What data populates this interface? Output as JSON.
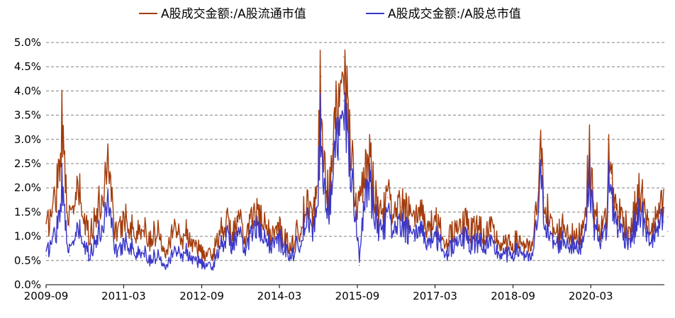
{
  "chart_data": {
    "type": "line",
    "title": "",
    "xlabel": "",
    "ylabel": "",
    "x_range": [
      "2009-09",
      "2021-08"
    ],
    "x_ticks": [
      "2009-09",
      "2011-03",
      "2012-09",
      "2014-03",
      "2015-09",
      "2017-03",
      "2018-09",
      "2020-03"
    ],
    "y_ticks": [
      "0.0%",
      "0.5%",
      "1.0%",
      "1.5%",
      "2.0%",
      "2.5%",
      "3.0%",
      "3.5%",
      "4.0%",
      "4.5%",
      "5.0%"
    ],
    "ylim": [
      0,
      5
    ],
    "y_unit": "%",
    "grid": true,
    "legend_position": "top-center",
    "series": [
      {
        "name": "A股成交金额:/A股流通市值",
        "color": "#A33B0B",
        "points": [
          [
            "2009-09-01",
            1.1
          ],
          [
            "2009-10-15",
            1.5
          ],
          [
            "2009-11-20",
            2.1
          ],
          [
            "2009-12-20",
            3.2
          ],
          [
            "2010-01-15",
            2.2
          ],
          [
            "2010-02-15",
            1.2
          ],
          [
            "2010-03-15",
            1.6
          ],
          [
            "2010-04-20",
            1.9
          ],
          [
            "2010-05-20",
            1.3
          ],
          [
            "2010-07-01",
            1.0
          ],
          [
            "2010-08-15",
            1.4
          ],
          [
            "2010-10-10",
            1.8
          ],
          [
            "2010-11-10",
            2.8
          ],
          [
            "2010-11-25",
            2.2
          ],
          [
            "2010-12-20",
            1.3
          ],
          [
            "2011-01-20",
            1.0
          ],
          [
            "2011-03-10",
            1.4
          ],
          [
            "2011-04-20",
            1.2
          ],
          [
            "2011-06-01",
            1.0
          ],
          [
            "2011-07-15",
            1.2
          ],
          [
            "2011-09-01",
            0.9
          ],
          [
            "2011-10-25",
            1.1
          ],
          [
            "2011-12-20",
            0.7
          ],
          [
            "2012-02-20",
            1.2
          ],
          [
            "2012-04-10",
            0.9
          ],
          [
            "2012-05-10",
            1.1
          ],
          [
            "2012-07-01",
            0.8
          ],
          [
            "2012-08-20",
            0.7
          ],
          [
            "2012-09-20",
            0.6
          ],
          [
            "2012-11-15",
            0.6
          ],
          [
            "2013-01-10",
            1.1
          ],
          [
            "2013-02-20",
            1.3
          ],
          [
            "2013-04-01",
            1.0
          ],
          [
            "2013-05-25",
            1.3
          ],
          [
            "2013-06-25",
            0.9
          ],
          [
            "2013-08-15",
            1.3
          ],
          [
            "2013-09-20",
            1.5
          ],
          [
            "2013-11-01",
            1.2
          ],
          [
            "2014-01-10",
            1.0
          ],
          [
            "2014-03-01",
            1.1
          ],
          [
            "2014-04-15",
            0.9
          ],
          [
            "2014-06-01",
            0.8
          ],
          [
            "2014-07-25",
            1.2
          ],
          [
            "2014-09-10",
            1.6
          ],
          [
            "2014-10-20",
            1.3
          ],
          [
            "2014-11-20",
            1.9
          ],
          [
            "2014-12-08",
            3.4
          ],
          [
            "2014-12-20",
            4.3
          ],
          [
            "2015-01-10",
            2.4
          ],
          [
            "2015-02-10",
            1.8
          ],
          [
            "2015-03-10",
            2.9
          ],
          [
            "2015-04-10",
            4.0
          ],
          [
            "2015-05-01",
            3.1
          ],
          [
            "2015-05-28",
            4.7
          ],
          [
            "2015-06-15",
            3.6
          ],
          [
            "2015-07-08",
            3.2
          ],
          [
            "2015-08-01",
            2.5
          ],
          [
            "2015-08-26",
            1.6
          ],
          [
            "2015-09-15",
            1.5
          ],
          [
            "2015-10-20",
            2.2
          ],
          [
            "2015-11-20",
            2.6
          ],
          [
            "2015-12-20",
            2.0
          ],
          [
            "2016-01-20",
            1.6
          ],
          [
            "2016-02-25",
            1.4
          ],
          [
            "2016-04-01",
            1.8
          ],
          [
            "2016-05-15",
            1.3
          ],
          [
            "2016-07-01",
            1.6
          ],
          [
            "2016-08-20",
            1.5
          ],
          [
            "2016-10-01",
            1.2
          ],
          [
            "2016-11-25",
            1.6
          ],
          [
            "2017-01-10",
            1.1
          ],
          [
            "2017-02-20",
            1.3
          ],
          [
            "2017-03-20",
            1.2
          ],
          [
            "2017-05-20",
            0.8
          ],
          [
            "2017-07-01",
            1.1
          ],
          [
            "2017-09-01",
            1.3
          ],
          [
            "2017-11-15",
            1.1
          ],
          [
            "2018-01-10",
            1.2
          ],
          [
            "2018-02-10",
            1.0
          ],
          [
            "2018-04-01",
            1.1
          ],
          [
            "2018-06-01",
            0.8
          ],
          [
            "2018-08-01",
            0.8
          ],
          [
            "2018-10-20",
            0.9
          ],
          [
            "2018-12-20",
            0.7
          ],
          [
            "2019-01-20",
            0.8
          ],
          [
            "2019-02-25",
            1.9
          ],
          [
            "2019-03-08",
            2.7
          ],
          [
            "2019-04-10",
            1.8
          ],
          [
            "2019-05-20",
            1.2
          ],
          [
            "2019-07-01",
            1.0
          ],
          [
            "2019-08-20",
            1.2
          ],
          [
            "2019-10-15",
            1.0
          ],
          [
            "2019-11-20",
            0.9
          ],
          [
            "2020-01-05",
            1.2
          ],
          [
            "2020-02-05",
            2.0
          ],
          [
            "2020-02-25",
            2.7
          ],
          [
            "2020-03-20",
            1.5
          ],
          [
            "2020-05-20",
            1.1
          ],
          [
            "2020-06-25",
            1.5
          ],
          [
            "2020-07-08",
            2.9
          ],
          [
            "2020-07-20",
            2.2
          ],
          [
            "2020-08-20",
            1.6
          ],
          [
            "2020-10-20",
            1.3
          ],
          [
            "2020-12-10",
            1.1
          ],
          [
            "2021-01-20",
            1.7
          ],
          [
            "2021-02-20",
            1.9
          ],
          [
            "2021-03-20",
            1.3
          ],
          [
            "2021-05-10",
            1.1
          ],
          [
            "2021-06-15",
            1.4
          ],
          [
            "2021-07-28",
            1.6
          ],
          [
            "2021-08-25",
            1.4
          ]
        ]
      },
      {
        "name": "A股成交金额:/A股总市值",
        "color": "#3A37C8",
        "points": [
          [
            "2009-09-01",
            0.6
          ],
          [
            "2009-10-15",
            0.9
          ],
          [
            "2009-11-20",
            1.2
          ],
          [
            "2009-12-20",
            2.0
          ],
          [
            "2010-01-15",
            1.3
          ],
          [
            "2010-02-15",
            0.6
          ],
          [
            "2010-03-15",
            0.9
          ],
          [
            "2010-04-20",
            1.1
          ],
          [
            "2010-05-20",
            0.8
          ],
          [
            "2010-07-01",
            0.6
          ],
          [
            "2010-08-15",
            0.9
          ],
          [
            "2010-10-10",
            1.2
          ],
          [
            "2010-11-10",
            1.9
          ],
          [
            "2010-11-25",
            1.5
          ],
          [
            "2010-12-20",
            0.9
          ],
          [
            "2011-01-20",
            0.6
          ],
          [
            "2011-03-10",
            0.9
          ],
          [
            "2011-04-20",
            0.8
          ],
          [
            "2011-06-01",
            0.6
          ],
          [
            "2011-07-15",
            0.7
          ],
          [
            "2011-09-01",
            0.5
          ],
          [
            "2011-10-25",
            0.6
          ],
          [
            "2011-12-20",
            0.4
          ],
          [
            "2012-02-20",
            0.7
          ],
          [
            "2012-04-10",
            0.6
          ],
          [
            "2012-05-10",
            0.7
          ],
          [
            "2012-07-01",
            0.5
          ],
          [
            "2012-08-20",
            0.45
          ],
          [
            "2012-09-20",
            0.4
          ],
          [
            "2012-11-15",
            0.35
          ],
          [
            "2013-01-10",
            0.8
          ],
          [
            "2013-02-20",
            1.0
          ],
          [
            "2013-04-01",
            0.8
          ],
          [
            "2013-05-25",
            1.0
          ],
          [
            "2013-06-25",
            0.7
          ],
          [
            "2013-08-15",
            1.0
          ],
          [
            "2013-09-20",
            1.2
          ],
          [
            "2013-11-01",
            0.9
          ],
          [
            "2014-01-10",
            0.8
          ],
          [
            "2014-03-01",
            0.9
          ],
          [
            "2014-04-15",
            0.7
          ],
          [
            "2014-06-01",
            0.6
          ],
          [
            "2014-07-25",
            0.9
          ],
          [
            "2014-09-10",
            1.3
          ],
          [
            "2014-10-20",
            1.0
          ],
          [
            "2014-11-20",
            1.5
          ],
          [
            "2014-12-08",
            2.7
          ],
          [
            "2014-12-20",
            3.6
          ],
          [
            "2015-01-10",
            1.9
          ],
          [
            "2015-02-10",
            1.5
          ],
          [
            "2015-03-10",
            2.3
          ],
          [
            "2015-04-10",
            3.3
          ],
          [
            "2015-05-01",
            2.6
          ],
          [
            "2015-05-28",
            3.8
          ],
          [
            "2015-06-15",
            3.0
          ],
          [
            "2015-07-08",
            2.6
          ],
          [
            "2015-08-01",
            2.0
          ],
          [
            "2015-08-26",
            1.3
          ],
          [
            "2015-09-15",
            0.4
          ],
          [
            "2015-10-20",
            1.7
          ],
          [
            "2015-11-20",
            2.1
          ],
          [
            "2015-12-20",
            1.6
          ],
          [
            "2016-01-20",
            1.2
          ],
          [
            "2016-02-25",
            1.1
          ],
          [
            "2016-04-01",
            1.4
          ],
          [
            "2016-05-15",
            1.0
          ],
          [
            "2016-07-01",
            1.2
          ],
          [
            "2016-08-20",
            1.1
          ],
          [
            "2016-10-01",
            0.9
          ],
          [
            "2016-11-25",
            1.2
          ],
          [
            "2017-01-10",
            0.8
          ],
          [
            "2017-02-20",
            1.0
          ],
          [
            "2017-03-20",
            0.9
          ],
          [
            "2017-05-20",
            0.6
          ],
          [
            "2017-07-01",
            0.8
          ],
          [
            "2017-09-01",
            1.0
          ],
          [
            "2017-11-15",
            0.8
          ],
          [
            "2018-01-10",
            0.9
          ],
          [
            "2018-02-10",
            0.8
          ],
          [
            "2018-04-01",
            0.8
          ],
          [
            "2018-06-01",
            0.6
          ],
          [
            "2018-08-01",
            0.6
          ],
          [
            "2018-10-20",
            0.7
          ],
          [
            "2018-12-20",
            0.5
          ],
          [
            "2019-01-20",
            0.6
          ],
          [
            "2019-02-25",
            1.5
          ],
          [
            "2019-03-08",
            2.2
          ],
          [
            "2019-04-10",
            1.4
          ],
          [
            "2019-05-20",
            0.9
          ],
          [
            "2019-07-01",
            0.8
          ],
          [
            "2019-08-20",
            0.9
          ],
          [
            "2019-10-15",
            0.8
          ],
          [
            "2019-11-20",
            0.7
          ],
          [
            "2020-01-05",
            0.9
          ],
          [
            "2020-02-05",
            1.6
          ],
          [
            "2020-02-25",
            2.2
          ],
          [
            "2020-03-20",
            1.2
          ],
          [
            "2020-05-20",
            0.9
          ],
          [
            "2020-06-25",
            1.2
          ],
          [
            "2020-07-08",
            2.4
          ],
          [
            "2020-07-20",
            1.8
          ],
          [
            "2020-08-20",
            1.3
          ],
          [
            "2020-10-20",
            1.0
          ],
          [
            "2020-12-10",
            0.9
          ],
          [
            "2021-01-20",
            1.3
          ],
          [
            "2021-02-20",
            1.5
          ],
          [
            "2021-03-20",
            1.0
          ],
          [
            "2021-05-10",
            0.9
          ],
          [
            "2021-06-15",
            1.1
          ],
          [
            "2021-07-28",
            1.3
          ],
          [
            "2021-08-25",
            1.1
          ]
        ]
      }
    ]
  }
}
